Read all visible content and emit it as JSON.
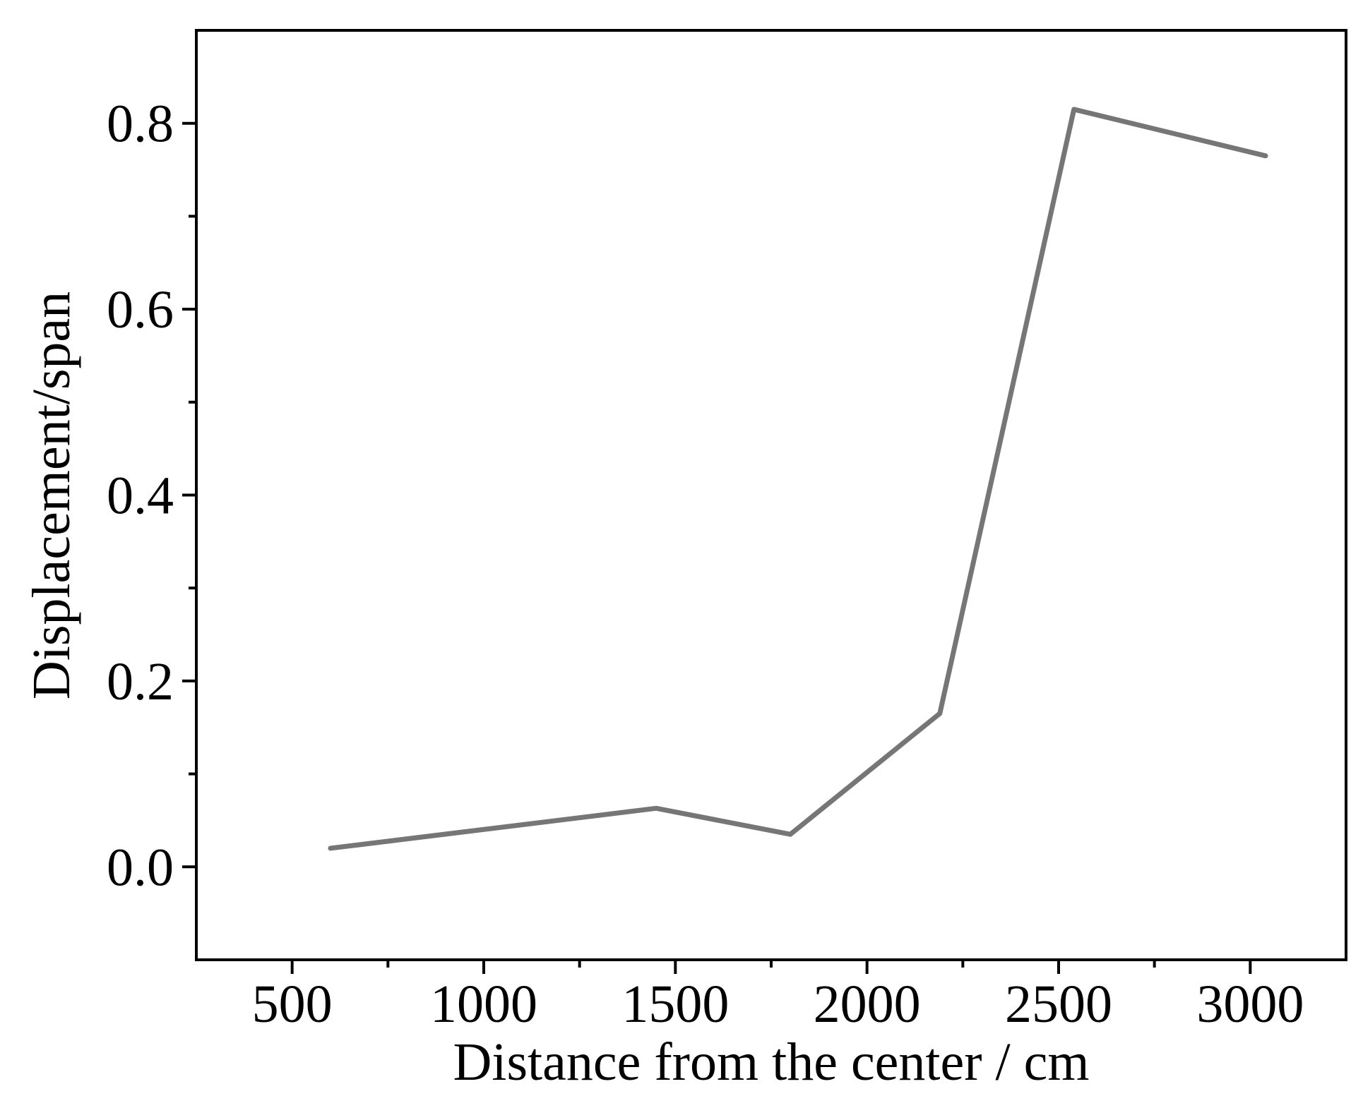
{
  "chart_data": {
    "type": "line",
    "x_label": "Distance from the center / cm",
    "y_label": "Displacement/span",
    "x": [
      600,
      1450,
      1800,
      2190,
      2540,
      3040
    ],
    "series": [
      {
        "color": "#767676",
        "values": [
          0.02,
          0.063,
          0.035,
          0.165,
          0.815,
          0.765
        ]
      }
    ],
    "xlim": [
      250,
      3250
    ],
    "xticks": [
      500,
      1000,
      1500,
      2000,
      2500,
      3000
    ],
    "xminorticks": [
      750,
      1250,
      1750,
      2250,
      2750
    ],
    "ylim": [
      -0.1,
      0.9
    ],
    "yticks": [
      {
        "value": 0,
        "label": "0.0"
      },
      0.2,
      0.4,
      0.6,
      0.8
    ],
    "yminorticks": [
      0.1,
      0.3,
      0.5,
      0.7
    ],
    "grid": false
  }
}
